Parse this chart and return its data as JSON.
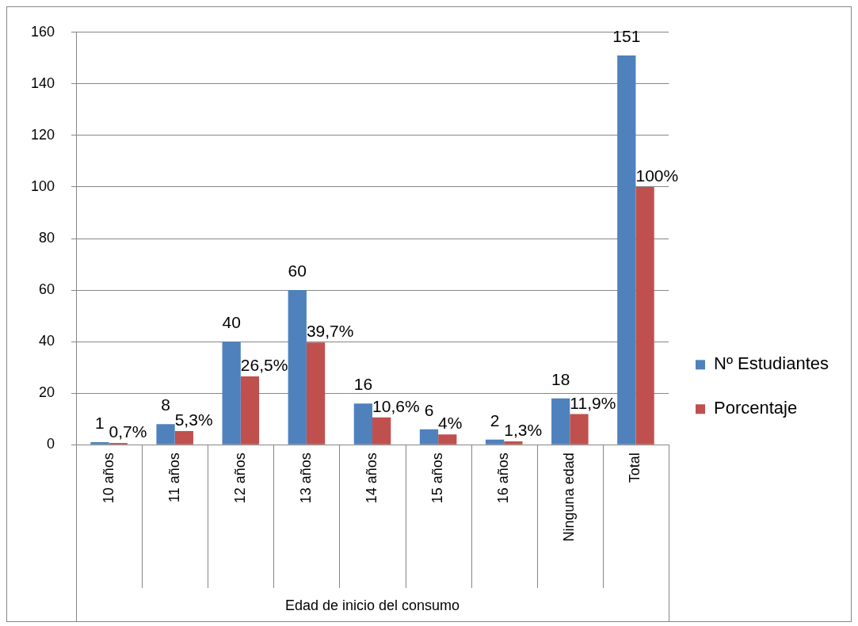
{
  "chart_data": {
    "type": "bar",
    "categories": [
      "10 años",
      "11 años",
      "12 años",
      "13 años",
      "14 años",
      "15 años",
      "16 años",
      "Ninguna edad",
      "Total"
    ],
    "xlabel": "Edad de inicio del consumo",
    "series": [
      {
        "name": "Nº Estudiantes",
        "color": "#4f81bd",
        "values": [
          1,
          8,
          40,
          60,
          16,
          6,
          2,
          18,
          151
        ],
        "value_labels": [
          "1",
          "8",
          "40",
          "60",
          "16",
          "6",
          "2",
          "18",
          "151"
        ]
      },
      {
        "name": "Porcentaje",
        "color": "#c0504d",
        "values": [
          0.7,
          5.3,
          26.5,
          39.7,
          10.6,
          4,
          1.3,
          11.9,
          100
        ],
        "value_labels": [
          "0,7%",
          "5,3%",
          "26,5%",
          "39,7%",
          "10,6%",
          "4%",
          "1,3%",
          "11,9%",
          "100%"
        ]
      }
    ],
    "ylim": [
      0,
      160
    ],
    "yticks": [
      0,
      20,
      40,
      60,
      80,
      100,
      120,
      140,
      160
    ],
    "grid": "y",
    "legend": "right"
  }
}
